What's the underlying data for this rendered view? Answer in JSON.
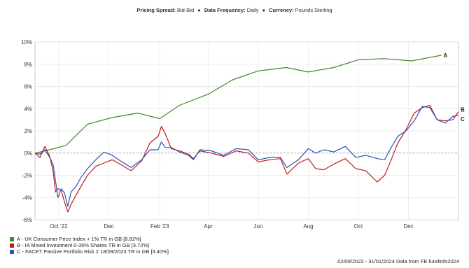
{
  "header": {
    "spread_label": "Pricing Spread:",
    "spread_value": "Bid-Bid",
    "frequency_label": "Data Frequency:",
    "frequency_value": "Daily",
    "currency_label": "Currency:",
    "currency_value": "Pounds Sterling",
    "separator": "●"
  },
  "footer": "02/09/2022 - 31/01/2024 Data from FE fundinfo2024",
  "colors": {
    "A": "#3d8a2a",
    "B": "#c8181e",
    "C": "#2a52b8",
    "zero_line": "#888888"
  },
  "legend": [
    {
      "key": "A",
      "label": "A - UK Consumer Price Index + 1% TR in GB [8.82%]"
    },
    {
      "key": "B",
      "label": "B - IA Mixed Investment 0-35% Shares TR in GB [3.72%]"
    },
    {
      "key": "C",
      "label": "C - FACET Passive Portfolio Risk 2 18/09/2023 TR in GB [3.40%]"
    }
  ],
  "chart_data": {
    "type": "line",
    "x_range": [
      "2022-09-02",
      "2024-01-31"
    ],
    "ylim": [
      -6,
      10
    ],
    "y_ticks": [
      -6,
      -4,
      -2,
      0,
      2,
      4,
      6,
      8,
      10
    ],
    "y_tick_labels": [
      "-6%",
      "-4%",
      "-2%",
      "0%",
      "2%",
      "4%",
      "6%",
      "8%",
      "10%"
    ],
    "x_ticks": [
      {
        "date": "2022-10-01",
        "label": "Oct '22"
      },
      {
        "date": "2022-12-01",
        "label": "Dec"
      },
      {
        "date": "2023-02-01",
        "label": "Feb '23"
      },
      {
        "date": "2023-04-01",
        "label": "Apr"
      },
      {
        "date": "2023-06-01",
        "label": "Jun"
      },
      {
        "date": "2023-08-01",
        "label": "Aug"
      },
      {
        "date": "2023-10-01",
        "label": "Oct"
      },
      {
        "date": "2023-12-01",
        "label": "Dec"
      }
    ],
    "grid": true,
    "series": [
      {
        "name": "A",
        "label": "A",
        "points": [
          [
            "2022-09-02",
            0.0
          ],
          [
            "2022-09-20",
            0.3
          ],
          [
            "2022-10-10",
            0.7
          ],
          [
            "2022-11-05",
            2.6
          ],
          [
            "2022-12-05",
            3.2
          ],
          [
            "2023-01-05",
            3.6
          ],
          [
            "2023-02-01",
            3.1
          ],
          [
            "2023-02-25",
            4.3
          ],
          [
            "2023-04-01",
            5.3
          ],
          [
            "2023-05-01",
            6.6
          ],
          [
            "2023-06-01",
            7.4
          ],
          [
            "2023-07-05",
            7.7
          ],
          [
            "2023-08-01",
            7.3
          ],
          [
            "2023-09-01",
            7.7
          ],
          [
            "2023-10-01",
            8.4
          ],
          [
            "2023-11-01",
            8.5
          ],
          [
            "2023-12-05",
            8.3
          ],
          [
            "2024-01-10",
            8.8
          ]
        ]
      },
      {
        "name": "B",
        "label": "B",
        "points": [
          [
            "2022-09-02",
            0.0
          ],
          [
            "2022-09-08",
            -0.4
          ],
          [
            "2022-09-14",
            0.6
          ],
          [
            "2022-09-20",
            -0.3
          ],
          [
            "2022-09-24",
            -1.6
          ],
          [
            "2022-09-27",
            -3.5
          ],
          [
            "2022-09-30",
            -3.2
          ],
          [
            "2022-10-04",
            -3.4
          ],
          [
            "2022-10-08",
            -4.4
          ],
          [
            "2022-10-12",
            -5.3
          ],
          [
            "2022-10-16",
            -4.6
          ],
          [
            "2022-10-22",
            -3.8
          ],
          [
            "2022-10-28",
            -3.0
          ],
          [
            "2022-11-05",
            -2.0
          ],
          [
            "2022-11-15",
            -1.2
          ],
          [
            "2022-11-25",
            -0.9
          ],
          [
            "2022-12-05",
            -0.6
          ],
          [
            "2022-12-15",
            -1.0
          ],
          [
            "2022-12-28",
            -1.6
          ],
          [
            "2023-01-10",
            -0.7
          ],
          [
            "2023-01-20",
            0.9
          ],
          [
            "2023-01-30",
            1.5
          ],
          [
            "2023-02-03",
            2.4
          ],
          [
            "2023-02-08",
            1.7
          ],
          [
            "2023-02-15",
            0.4
          ],
          [
            "2023-02-25",
            0.2
          ],
          [
            "2023-03-08",
            -0.1
          ],
          [
            "2023-03-14",
            -0.5
          ],
          [
            "2023-03-22",
            0.2
          ],
          [
            "2023-04-05",
            0.0
          ],
          [
            "2023-04-20",
            -0.3
          ],
          [
            "2023-05-05",
            0.2
          ],
          [
            "2023-05-20",
            0.0
          ],
          [
            "2023-06-01",
            -0.8
          ],
          [
            "2023-06-15",
            -0.6
          ],
          [
            "2023-06-28",
            -0.5
          ],
          [
            "2023-07-06",
            -1.9
          ],
          [
            "2023-07-20",
            -0.9
          ],
          [
            "2023-08-01",
            -0.5
          ],
          [
            "2023-08-10",
            -1.4
          ],
          [
            "2023-08-20",
            -1.5
          ],
          [
            "2023-09-01",
            -1.0
          ],
          [
            "2023-09-15",
            -0.5
          ],
          [
            "2023-09-28",
            -1.4
          ],
          [
            "2023-10-10",
            -1.6
          ],
          [
            "2023-10-24",
            -2.6
          ],
          [
            "2023-11-02",
            -2.0
          ],
          [
            "2023-11-10",
            -0.6
          ],
          [
            "2023-11-18",
            0.9
          ],
          [
            "2023-11-28",
            2.1
          ],
          [
            "2023-12-08",
            3.6
          ],
          [
            "2023-12-18",
            4.1
          ],
          [
            "2023-12-27",
            4.3
          ],
          [
            "2024-01-05",
            3.0
          ],
          [
            "2024-01-15",
            2.9
          ],
          [
            "2024-01-24",
            3.0
          ],
          [
            "2024-01-31",
            3.72
          ]
        ]
      },
      {
        "name": "C",
        "label": "C",
        "points": [
          [
            "2022-09-02",
            0.0
          ],
          [
            "2022-09-08",
            -0.1
          ],
          [
            "2022-09-14",
            0.3
          ],
          [
            "2022-09-20",
            -0.4
          ],
          [
            "2022-09-24",
            -1.0
          ],
          [
            "2022-09-27",
            -2.5
          ],
          [
            "2022-09-30",
            -4.0
          ],
          [
            "2022-10-04",
            -3.2
          ],
          [
            "2022-10-08",
            -3.6
          ],
          [
            "2022-10-12",
            -4.8
          ],
          [
            "2022-10-16",
            -3.5
          ],
          [
            "2022-10-22",
            -3.0
          ],
          [
            "2022-10-28",
            -2.2
          ],
          [
            "2022-11-05",
            -1.4
          ],
          [
            "2022-11-15",
            -0.6
          ],
          [
            "2022-11-25",
            0.1
          ],
          [
            "2022-12-05",
            -0.2
          ],
          [
            "2022-12-15",
            -0.7
          ],
          [
            "2022-12-28",
            -1.3
          ],
          [
            "2023-01-10",
            -0.6
          ],
          [
            "2023-01-20",
            0.3
          ],
          [
            "2023-01-30",
            0.3
          ],
          [
            "2023-02-03",
            1.0
          ],
          [
            "2023-02-08",
            0.5
          ],
          [
            "2023-02-15",
            0.5
          ],
          [
            "2023-02-25",
            0.1
          ],
          [
            "2023-03-08",
            -0.2
          ],
          [
            "2023-03-14",
            -0.6
          ],
          [
            "2023-03-22",
            0.3
          ],
          [
            "2023-04-05",
            0.2
          ],
          [
            "2023-04-20",
            -0.2
          ],
          [
            "2023-05-05",
            0.4
          ],
          [
            "2023-05-20",
            0.3
          ],
          [
            "2023-06-01",
            -0.6
          ],
          [
            "2023-06-15",
            -0.4
          ],
          [
            "2023-06-28",
            -0.4
          ],
          [
            "2023-07-06",
            -1.3
          ],
          [
            "2023-07-20",
            -0.6
          ],
          [
            "2023-08-01",
            0.4
          ],
          [
            "2023-08-10",
            0.0
          ],
          [
            "2023-08-20",
            0.3
          ],
          [
            "2023-09-01",
            0.1
          ],
          [
            "2023-09-15",
            0.6
          ],
          [
            "2023-09-28",
            -0.4
          ],
          [
            "2023-10-10",
            -0.2
          ],
          [
            "2023-10-24",
            -0.5
          ],
          [
            "2023-11-02",
            -0.6
          ],
          [
            "2023-11-10",
            0.5
          ],
          [
            "2023-11-18",
            1.5
          ],
          [
            "2023-11-28",
            2.0
          ],
          [
            "2023-12-08",
            2.9
          ],
          [
            "2023-12-18",
            4.2
          ],
          [
            "2023-12-27",
            4.1
          ],
          [
            "2024-01-05",
            3.0
          ],
          [
            "2024-01-15",
            2.7
          ],
          [
            "2024-01-24",
            3.3
          ],
          [
            "2024-01-31",
            3.4
          ]
        ]
      }
    ]
  }
}
